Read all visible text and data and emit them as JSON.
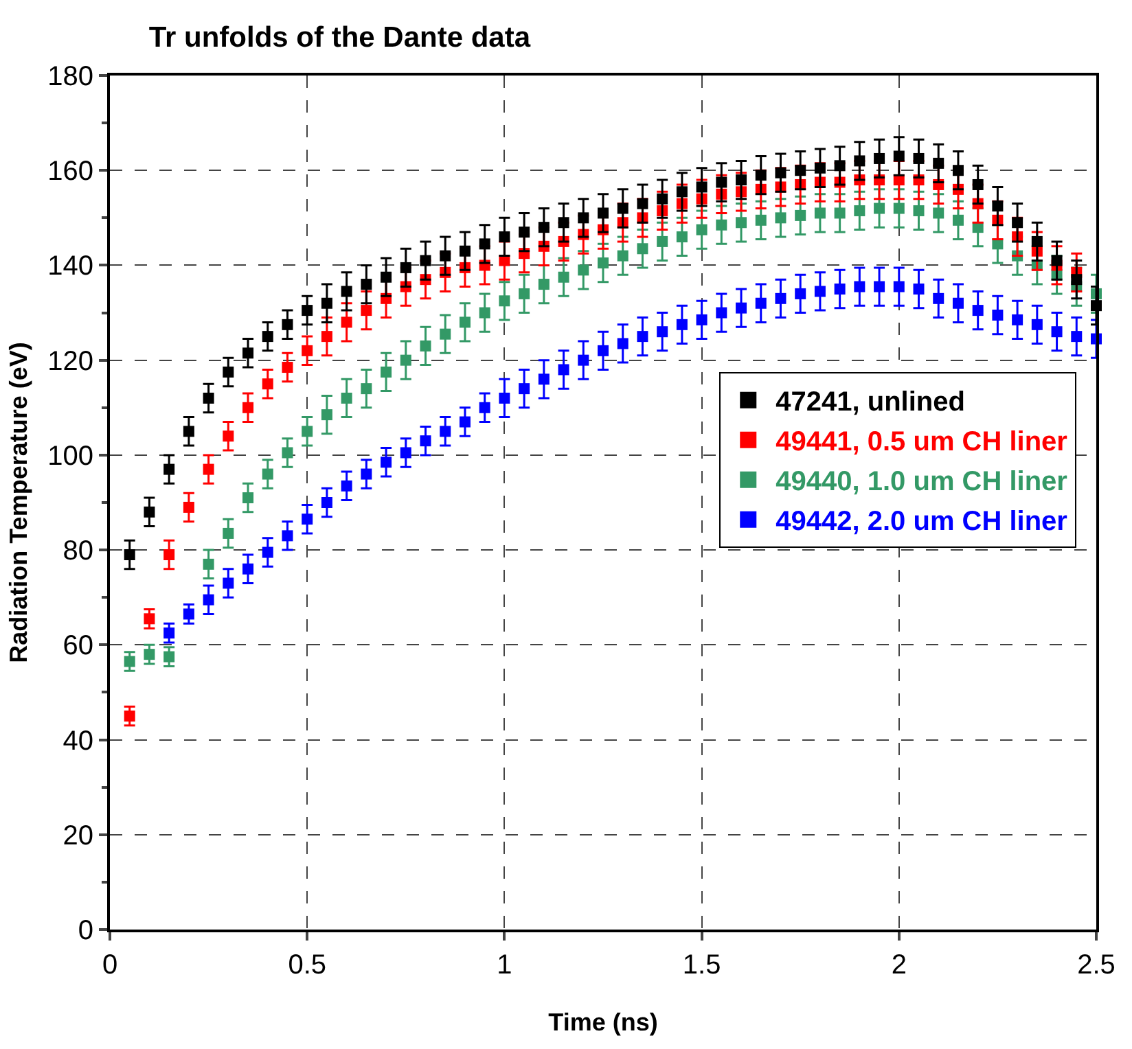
{
  "chart_data": {
    "type": "scatter",
    "title": "Tr unfolds of the Dante data",
    "xlabel": "Time (ns)",
    "ylabel": "Radiation Temperature (eV)",
    "xlim": [
      0,
      2.5
    ],
    "xticks": [
      0,
      0.5,
      1,
      1.5,
      2,
      2.5
    ],
    "ylim": [
      0,
      180
    ],
    "yticks": [
      0,
      20,
      40,
      60,
      80,
      100,
      120,
      140,
      160,
      180
    ],
    "grid": true,
    "legend": "right",
    "marker": "square",
    "series": [
      {
        "name": "47241, unlined",
        "color": "#000000",
        "x": [
          0.05,
          0.1,
          0.15,
          0.2,
          0.25,
          0.3,
          0.35,
          0.4,
          0.45,
          0.5,
          0.55,
          0.6,
          0.65,
          0.7,
          0.75,
          0.8,
          0.85,
          0.9,
          0.95,
          1.0,
          1.05,
          1.1,
          1.15,
          1.2,
          1.25,
          1.3,
          1.35,
          1.4,
          1.45,
          1.5,
          1.55,
          1.6,
          1.65,
          1.7,
          1.75,
          1.8,
          1.85,
          1.9,
          1.95,
          2.0,
          2.05,
          2.1,
          2.15,
          2.2,
          2.25,
          2.3,
          2.35,
          2.4,
          2.45,
          2.5
        ],
        "values": [
          79,
          88,
          97,
          105,
          112,
          117.5,
          121.5,
          125,
          127.5,
          130.5,
          132,
          134.5,
          136,
          137.5,
          139.5,
          141,
          142,
          143,
          144.5,
          146,
          147,
          148,
          149,
          150,
          151,
          152,
          153,
          154,
          155.5,
          156.5,
          157.5,
          158,
          159,
          159.5,
          160,
          160.5,
          161,
          162,
          162.5,
          163,
          162.5,
          161.5,
          160,
          157,
          152.5,
          149,
          145,
          141,
          137,
          131.5
        ],
        "errors": [
          3,
          3,
          3,
          3,
          3,
          3,
          3,
          3,
          3,
          3,
          4,
          4,
          4,
          4,
          4,
          4,
          4,
          4,
          4,
          4,
          4,
          4,
          4,
          4,
          4,
          4,
          4,
          4,
          4,
          4,
          4,
          4,
          4,
          4,
          4,
          4,
          4,
          4,
          4,
          4,
          4,
          4,
          4,
          4,
          4,
          4,
          4,
          4,
          4,
          4
        ]
      },
      {
        "name": "49441, 0.5 um CH liner",
        "color": "#ff0000",
        "x": [
          0.05,
          0.1,
          0.15,
          0.2,
          0.25,
          0.3,
          0.35,
          0.4,
          0.45,
          0.5,
          0.55,
          0.6,
          0.65,
          0.7,
          0.75,
          0.8,
          0.85,
          0.9,
          0.95,
          1.0,
          1.05,
          1.1,
          1.15,
          1.2,
          1.25,
          1.3,
          1.35,
          1.4,
          1.45,
          1.5,
          1.55,
          1.6,
          1.65,
          1.7,
          1.75,
          1.8,
          1.85,
          1.9,
          1.95,
          2.0,
          2.05,
          2.1,
          2.15,
          2.2,
          2.25,
          2.3,
          2.35,
          2.4,
          2.45
        ],
        "values": [
          45,
          65.5,
          79,
          89,
          97,
          104,
          110,
          115,
          118.5,
          122,
          125,
          128,
          130.5,
          133,
          135.5,
          137,
          138.5,
          139.5,
          140,
          141,
          142.5,
          144,
          145,
          146.5,
          147.5,
          149,
          150,
          151.5,
          153,
          154,
          155,
          155.5,
          156,
          156.5,
          157,
          157.5,
          157.5,
          158,
          158,
          158,
          158,
          157,
          156,
          153,
          149.5,
          146,
          143,
          140,
          138.5
        ],
        "errors": [
          2,
          2,
          3,
          3,
          3,
          3,
          3,
          3,
          3,
          3,
          4,
          4,
          4,
          4,
          4,
          4,
          4,
          4,
          4,
          4,
          4,
          4,
          4,
          4,
          4,
          4,
          4,
          4,
          4,
          4,
          4,
          4,
          4,
          4,
          4,
          4,
          4,
          4,
          4,
          4,
          4,
          4,
          4,
          4,
          4,
          4,
          4,
          4,
          4
        ]
      },
      {
        "name": "49440, 1.0 um CH liner",
        "color": "#339966",
        "x": [
          0.05,
          0.1,
          0.15,
          0.2,
          0.25,
          0.3,
          0.35,
          0.4,
          0.45,
          0.5,
          0.55,
          0.6,
          0.65,
          0.7,
          0.75,
          0.8,
          0.85,
          0.9,
          0.95,
          1.0,
          1.05,
          1.1,
          1.15,
          1.2,
          1.25,
          1.3,
          1.35,
          1.4,
          1.45,
          1.5,
          1.55,
          1.6,
          1.65,
          1.7,
          1.75,
          1.8,
          1.85,
          1.9,
          1.95,
          2.0,
          2.05,
          2.1,
          2.15,
          2.2,
          2.25,
          2.3,
          2.35,
          2.4,
          2.45,
          2.5
        ],
        "values": [
          56.5,
          58,
          57.5,
          null,
          77,
          83.5,
          91,
          96,
          100.5,
          105,
          108.5,
          112,
          114,
          117.5,
          120,
          123,
          125.5,
          128,
          130,
          132.5,
          134,
          136,
          137.5,
          139,
          140.5,
          142,
          143.5,
          145,
          146,
          147.5,
          148.5,
          149,
          149.5,
          150,
          150.5,
          151,
          151,
          151.5,
          152,
          152,
          151.5,
          151,
          149.5,
          148,
          144.5,
          142,
          140,
          138,
          135.5,
          134
        ],
        "errors": [
          2,
          2,
          2,
          null,
          3,
          3,
          3,
          3,
          3,
          3,
          4,
          4,
          4,
          4,
          4,
          4,
          4,
          4,
          4,
          4,
          4,
          4,
          4,
          4,
          4,
          4,
          4,
          4,
          4,
          4,
          4,
          4,
          4,
          4,
          4,
          4,
          4,
          4,
          4,
          4,
          4,
          4,
          4,
          4,
          4,
          4,
          4,
          4,
          4,
          4
        ]
      },
      {
        "name": "49442, 2.0 um CH liner",
        "color": "#0000ff",
        "x": [
          0.15,
          0.2,
          0.25,
          0.3,
          0.35,
          0.4,
          0.45,
          0.5,
          0.55,
          0.6,
          0.65,
          0.7,
          0.75,
          0.8,
          0.85,
          0.9,
          0.95,
          1.0,
          1.05,
          1.1,
          1.15,
          1.2,
          1.25,
          1.3,
          1.35,
          1.4,
          1.45,
          1.5,
          1.55,
          1.6,
          1.65,
          1.7,
          1.75,
          1.8,
          1.85,
          1.9,
          1.95,
          2.0,
          2.05,
          2.1,
          2.15,
          2.2,
          2.25,
          2.3,
          2.35,
          2.4,
          2.45,
          2.5
        ],
        "values": [
          62.5,
          66.5,
          69.5,
          73,
          76,
          79.5,
          83,
          86.5,
          90,
          93.5,
          96,
          98.5,
          100.5,
          103,
          105,
          107,
          110,
          112,
          114,
          116,
          118,
          120,
          122,
          123.5,
          125,
          126,
          127.5,
          128.5,
          130,
          131,
          132,
          133,
          134,
          134.5,
          135,
          135.5,
          135.5,
          135.5,
          135,
          133,
          132,
          130.5,
          129.5,
          128.5,
          127.5,
          126,
          125,
          124.5
        ],
        "errors": [
          2,
          2,
          3,
          3,
          3,
          3,
          3,
          3,
          3,
          3,
          3,
          3,
          3,
          3,
          3,
          3,
          3,
          4,
          4,
          4,
          4,
          4,
          4,
          4,
          4,
          4,
          4,
          4,
          4,
          4,
          4,
          4,
          4,
          4,
          4,
          4,
          4,
          4,
          4,
          4,
          4,
          4,
          4,
          4,
          4,
          4,
          4,
          4
        ]
      }
    ]
  }
}
